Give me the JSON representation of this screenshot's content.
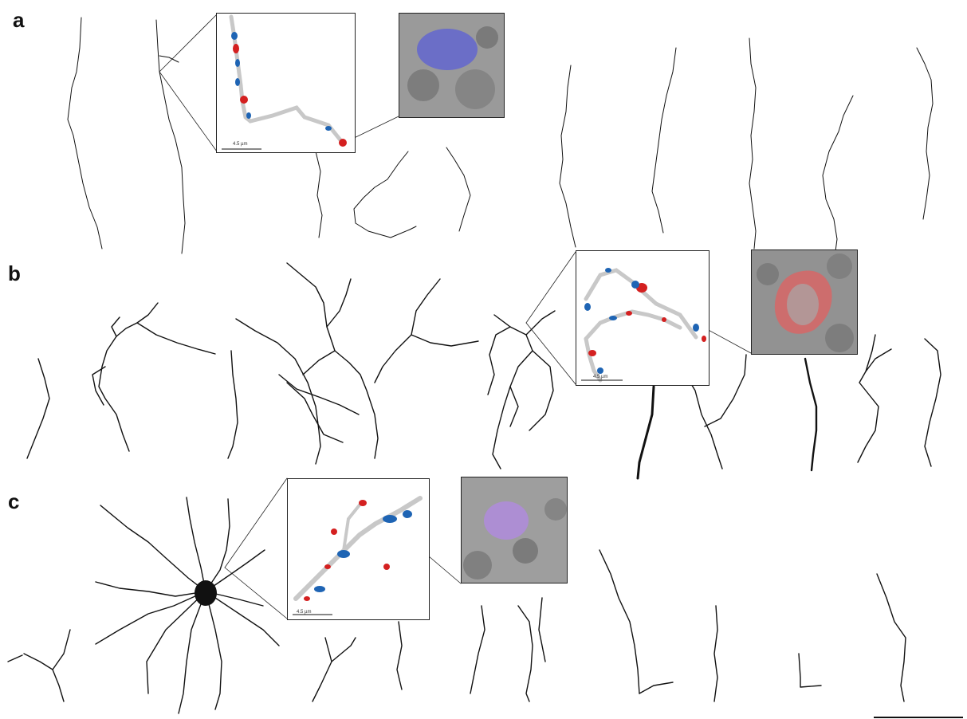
{
  "figure": {
    "panels": [
      {
        "letter": "a",
        "highlight_color": "#5b5fd6"
      },
      {
        "letter": "b",
        "highlight_color": "#e06060"
      },
      {
        "letter": "c",
        "highlight_color": "#b08ae0"
      }
    ],
    "marker_colors": {
      "blue": "#1e64b4",
      "red": "#d42020",
      "axon": "#c8c8c8"
    },
    "inset_scale_label": "4.5 µm"
  }
}
